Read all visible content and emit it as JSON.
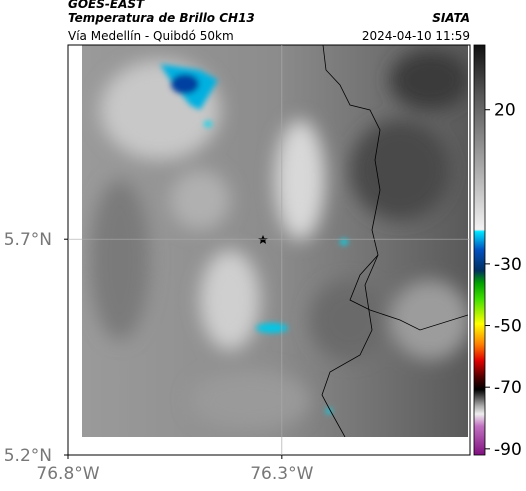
{
  "header": {
    "satellite": "GOES-EAST",
    "product": "Temperatura de Brillo CH13",
    "source": "SIATA",
    "route": "Vía Medellín - Quibdó 50km",
    "timestamp": "2024-04-10 11:59"
  },
  "map": {
    "xlim": [
      -76.8,
      -75.86
    ],
    "ylim": [
      5.2,
      6.15
    ],
    "xticks": [
      {
        "value": -76.8,
        "label": "76.8°W"
      },
      {
        "value": -76.3,
        "label": "76.3°W"
      }
    ],
    "yticks": [
      {
        "value": 5.7,
        "label": "5.7°N"
      },
      {
        "value": 5.2,
        "label": "5.2°N"
      }
    ],
    "grid": true
  },
  "colorbar": {
    "lim": [
      -92,
      41
    ],
    "ticks": [
      20,
      -30,
      -50,
      -70,
      -90
    ]
  }
}
